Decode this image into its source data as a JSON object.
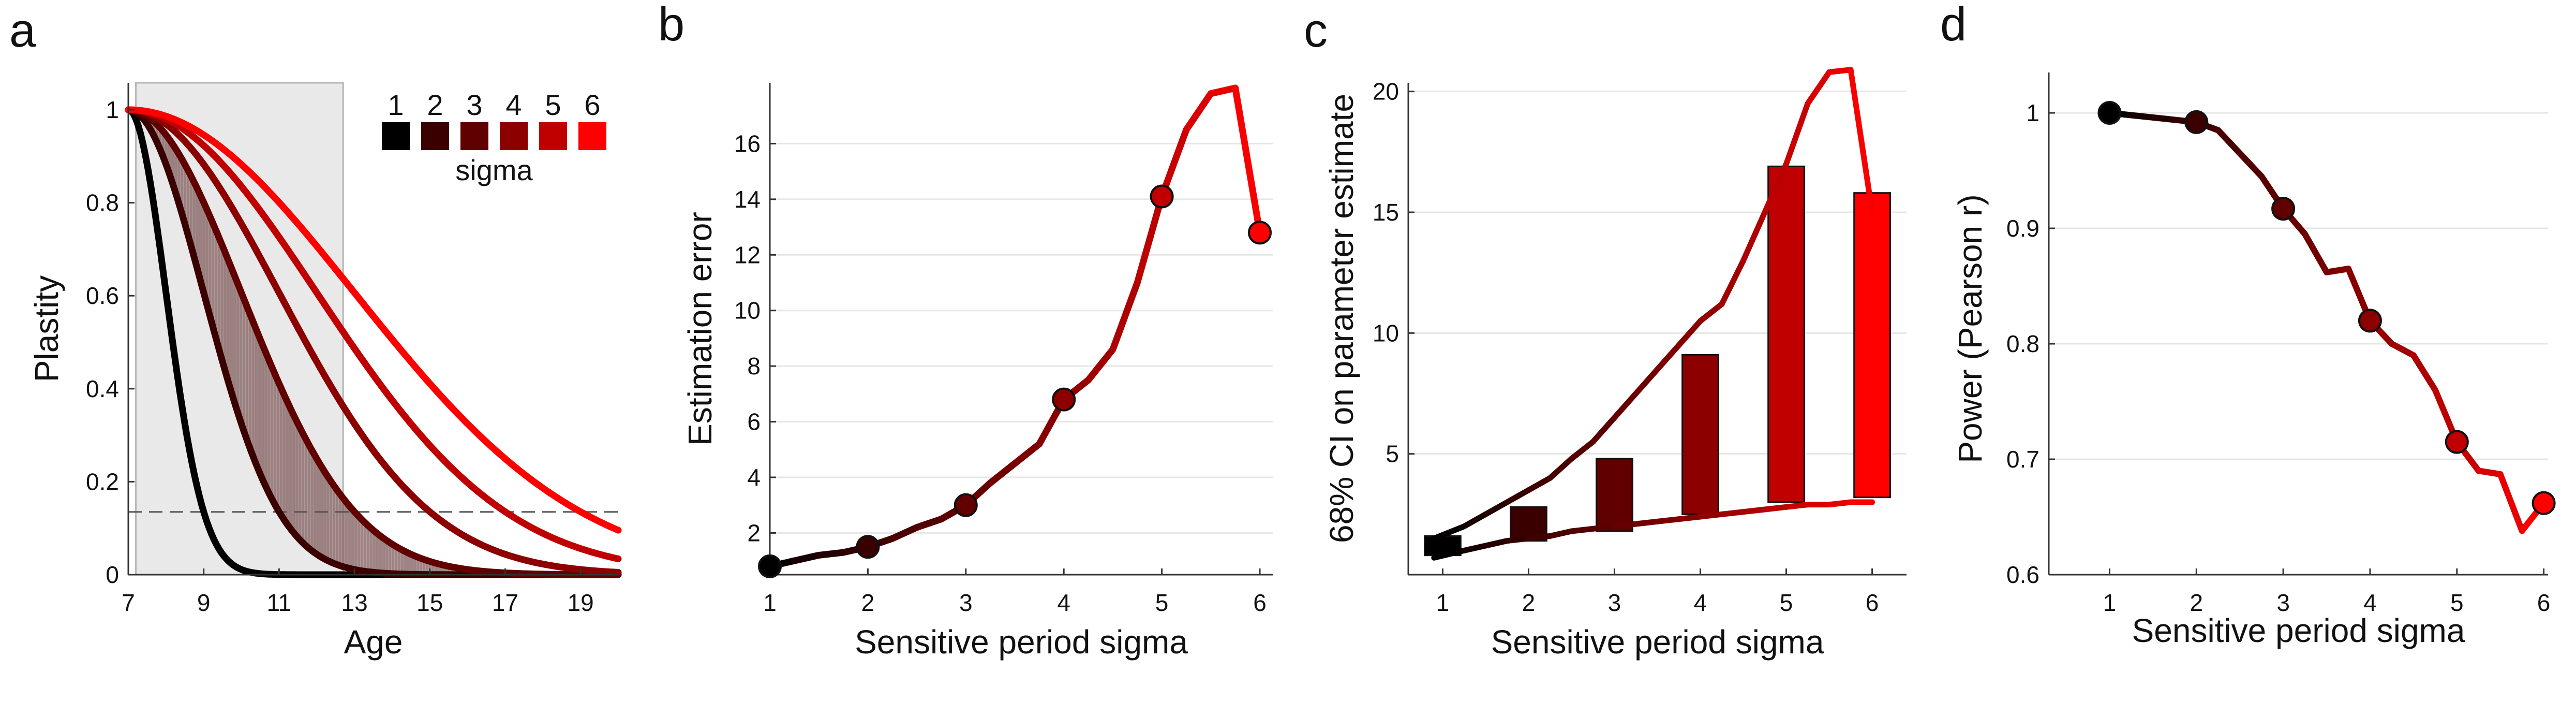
{
  "colors": {
    "sigma": [
      "#000000",
      "#3a0000",
      "#600000",
      "#8c0000",
      "#c00000",
      "#ff0000"
    ],
    "shade_box": "#e9e9e9",
    "band": "#8d6e6e",
    "grid": "#e6e6e6",
    "dash": "#555555"
  },
  "chart_data": [
    {
      "panel": "a",
      "type": "line",
      "xlabel": "Age",
      "ylabel": "Plastity",
      "xlim": [
        7,
        20
      ],
      "ylim": [
        0,
        1
      ],
      "xticks": [
        "7",
        "9",
        "11",
        "13",
        "15",
        "17",
        "19"
      ],
      "yticks": [
        "0",
        "0.2",
        "0.4",
        "0.6",
        "0.8",
        "1"
      ],
      "curve_form": "gaussian decay from age 7: exp(-(age-7)^2 / (2*sigma^2))",
      "sigmas": [
        1,
        2,
        3,
        4,
        5,
        6
      ],
      "shaded_region": [
        7.2,
        12.7
      ],
      "dashed_threshold": 0.135,
      "band_sigma_range": [
        2,
        3
      ],
      "legend": {
        "labels": [
          "1",
          "2",
          "3",
          "4",
          "5",
          "6"
        ],
        "title": "sigma",
        "position": "top-right"
      }
    },
    {
      "panel": "b",
      "type": "line",
      "xlabel": "Sensitive period sigma",
      "ylabel": "Estimation error",
      "xlim": [
        1,
        6
      ],
      "ylim": [
        0.5,
        18
      ],
      "xticks": [
        "1",
        "2",
        "3",
        "4",
        "5",
        "6"
      ],
      "yticks": [
        "2",
        "4",
        "6",
        "8",
        "10",
        "12",
        "14",
        "16"
      ],
      "x": [
        1,
        1.25,
        1.5,
        1.75,
        2,
        2.25,
        2.5,
        2.75,
        3,
        3.25,
        3.5,
        3.75,
        4,
        4.25,
        4.5,
        4.75,
        5,
        5.25,
        5.5,
        5.75,
        6
      ],
      "values": [
        0.8,
        1.0,
        1.2,
        1.3,
        1.5,
        1.8,
        2.2,
        2.5,
        3.0,
        3.8,
        4.5,
        5.2,
        6.8,
        7.5,
        8.6,
        11.0,
        14.1,
        16.5,
        17.8,
        18.0,
        12.8
      ],
      "markers": {
        "x": [
          1,
          2,
          3,
          4,
          5,
          6
        ],
        "values": [
          0.8,
          1.5,
          3.0,
          6.8,
          14.1,
          12.8
        ]
      }
    },
    {
      "panel": "c",
      "type": "bar",
      "xlabel": "Sensitive period sigma",
      "ylabel": "68% CI on parameter estimate",
      "xlim": [
        0.6,
        6.4
      ],
      "ylim": [
        0,
        21
      ],
      "xticks": [
        "1",
        "2",
        "3",
        "4",
        "5",
        "6"
      ],
      "yticks": [
        "5",
        "10",
        "15",
        "20"
      ],
      "categories": [
        "1",
        "2",
        "3",
        "4",
        "5",
        "6"
      ],
      "ranges": [
        [
          0.8,
          1.6
        ],
        [
          1.4,
          2.8
        ],
        [
          1.8,
          4.8
        ],
        [
          2.5,
          9.1
        ],
        [
          3.0,
          16.9
        ],
        [
          3.2,
          15.8
        ]
      ],
      "upper_line": {
        "x": [
          0.9,
          1.25,
          1.5,
          1.75,
          2,
          2.25,
          2.5,
          2.75,
          3,
          3.25,
          3.5,
          3.75,
          4,
          4.25,
          4.5,
          4.75,
          5,
          5.25,
          5.5,
          5.75,
          6
        ],
        "values": [
          1.5,
          2.0,
          2.5,
          3.0,
          3.5,
          4.0,
          4.8,
          5.5,
          6.5,
          7.5,
          8.5,
          9.5,
          10.5,
          11.2,
          13.0,
          15.0,
          17.0,
          19.5,
          20.8,
          20.9,
          15.0
        ]
      },
      "lower_line": {
        "x": [
          0.9,
          1.25,
          1.5,
          1.75,
          2,
          2.25,
          2.5,
          2.75,
          3,
          3.25,
          3.5,
          3.75,
          4,
          4.25,
          4.5,
          4.75,
          5,
          5.25,
          5.5,
          5.75,
          6
        ],
        "values": [
          0.7,
          1.0,
          1.2,
          1.4,
          1.5,
          1.6,
          1.8,
          1.9,
          2.0,
          2.1,
          2.2,
          2.3,
          2.4,
          2.5,
          2.6,
          2.7,
          2.8,
          2.9,
          2.9,
          3.0,
          3.0
        ]
      }
    },
    {
      "panel": "d",
      "type": "line",
      "xlabel": "Sensitive period sigma",
      "ylabel": "Power (Pearson r)",
      "xlim": [
        0.3,
        6.05
      ],
      "ylim": [
        0.6,
        1.035
      ],
      "xticks": [
        "1",
        "2",
        "3",
        "4",
        "5",
        "6"
      ],
      "yticks": [
        "0.6",
        "0.7",
        "0.8",
        "0.9",
        "1"
      ],
      "x": [
        1,
        1.25,
        1.5,
        1.75,
        2,
        2.25,
        2.5,
        2.75,
        3,
        3.25,
        3.5,
        3.75,
        4,
        4.25,
        4.5,
        4.75,
        5,
        5.25,
        5.5,
        5.75,
        6
      ],
      "values": [
        1.0,
        0.998,
        0.996,
        0.994,
        0.992,
        0.985,
        0.965,
        0.945,
        0.917,
        0.895,
        0.862,
        0.865,
        0.82,
        0.8,
        0.79,
        0.76,
        0.715,
        0.69,
        0.687,
        0.638,
        0.662
      ],
      "markers": {
        "x": [
          1,
          2,
          3,
          4,
          5,
          6
        ],
        "values": [
          1.0,
          0.992,
          0.917,
          0.82,
          0.715,
          0.662
        ]
      }
    }
  ]
}
